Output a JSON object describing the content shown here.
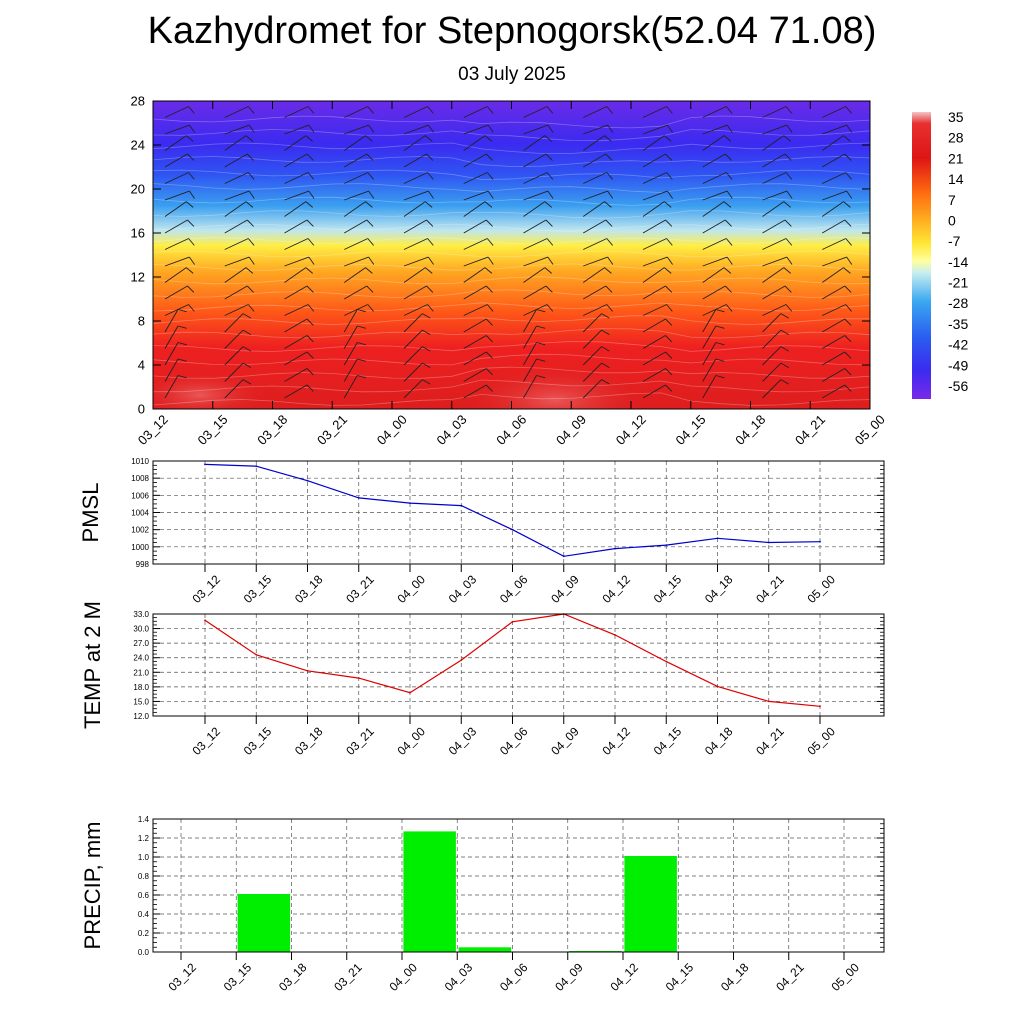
{
  "title": "Kazhydromet for Stepnogorsk(52.04 71.08)",
  "subtitle": "03 July 2025",
  "chart_data": [
    {
      "type": "heatmap",
      "x_categories": [
        "03_12",
        "03_15",
        "03_18",
        "03_21",
        "04_00",
        "04_03",
        "04_06",
        "04_09",
        "04_12",
        "04_15",
        "04_18",
        "04_21",
        "05_00"
      ],
      "ylim": [
        0,
        28
      ],
      "yticks": [
        0,
        4,
        8,
        12,
        16,
        20,
        24,
        28
      ],
      "colorbar_labels": [
        "35",
        "28",
        "21",
        "14",
        "7",
        "0",
        "-7",
        "-14",
        "-21",
        "-28",
        "-35",
        "-42",
        "-49",
        "-56"
      ],
      "colorbar_range": [
        -60,
        35
      ],
      "grid": false,
      "overlay": "wind barbs"
    },
    {
      "type": "line",
      "ylabel": "PMSL",
      "categories": [
        "03_12",
        "03_15",
        "03_18",
        "03_21",
        "04_00",
        "04_03",
        "04_06",
        "04_09",
        "04_12",
        "04_15",
        "04_18",
        "04_21",
        "05_00"
      ],
      "values": [
        1009.6,
        1009.4,
        1007.7,
        1005.7,
        1005.1,
        1004.8,
        1002.0,
        998.9,
        999.8,
        1000.2,
        1001.0,
        1000.5,
        1000.6
      ],
      "ylim": [
        998,
        1010
      ],
      "yticks": [
        998,
        1000,
        1002,
        1004,
        1006,
        1008,
        1010
      ],
      "ytick_labels": [
        "998",
        "1000",
        "1002",
        "1004",
        "1006",
        "1008",
        "1010"
      ],
      "color": "#0000cc",
      "grid": true
    },
    {
      "type": "line",
      "ylabel": "TEMP at 2 M",
      "categories": [
        "03_12",
        "03_15",
        "03_18",
        "03_21",
        "04_00",
        "04_03",
        "04_06",
        "04_09",
        "04_12",
        "04_15",
        "04_18",
        "04_21",
        "05_00"
      ],
      "values": [
        31.7,
        24.6,
        21.3,
        19.8,
        16.8,
        23.5,
        31.4,
        33.0,
        28.7,
        23.2,
        18.1,
        15.0,
        14.0
      ],
      "ylim": [
        12,
        33
      ],
      "yticks": [
        12,
        15,
        18,
        21,
        24,
        27,
        30,
        33
      ],
      "ytick_labels": [
        "12.0",
        "15.0",
        "18.0",
        "21.0",
        "24.0",
        "27.0",
        "30.0",
        "33.0"
      ],
      "color": "#dd0000",
      "grid": true
    },
    {
      "type": "bar",
      "ylabel": "PRECIP, mm",
      "categories": [
        "03_12",
        "03_15",
        "03_18",
        "03_21",
        "04_00",
        "04_03",
        "04_06",
        "04_09",
        "04_12",
        "04_15",
        "04_18",
        "04_21",
        "05_00"
      ],
      "values": [
        0,
        0.61,
        0,
        0,
        1.27,
        0.05,
        0,
        0.01,
        1.01,
        0,
        0,
        0,
        0
      ],
      "ylim": [
        0,
        1.4
      ],
      "yticks": [
        0,
        0.2,
        0.4,
        0.6,
        0.8,
        1.0,
        1.2,
        1.4
      ],
      "ytick_labels": [
        "0.0",
        "0.2",
        "0.4",
        "0.6",
        "0.8",
        "1.0",
        "1.2",
        "1.4"
      ],
      "color": "#00ee00",
      "grid": true
    }
  ]
}
